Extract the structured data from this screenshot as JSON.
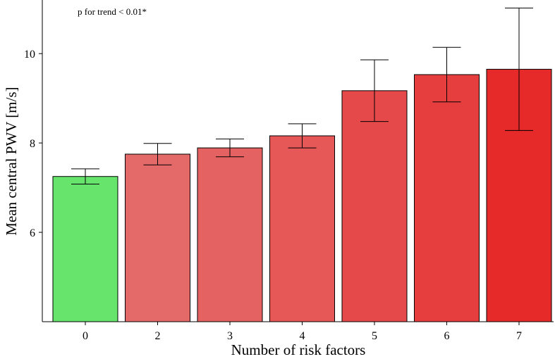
{
  "chart_data": {
    "type": "bar",
    "title": "",
    "xlabel": "Number of risk factors",
    "ylabel": "Mean central PWV [m/s]",
    "annotation": "p for trend < 0.01*",
    "categories": [
      "0",
      "2",
      "3",
      "4",
      "5",
      "6",
      "7"
    ],
    "values": [
      7.25,
      7.75,
      7.89,
      8.16,
      9.17,
      9.53,
      9.65
    ],
    "error_lower": [
      7.08,
      7.51,
      7.69,
      7.89,
      8.48,
      8.92,
      8.28
    ],
    "error_upper": [
      7.42,
      7.99,
      8.09,
      8.43,
      9.86,
      10.14,
      11.02
    ],
    "ylim": [
      4.0,
      11.2
    ],
    "yticks": [
      6,
      8,
      10
    ],
    "grid": false,
    "legend": "none",
    "colors": [
      "#66e46c",
      "#e46a6a",
      "#e56262",
      "#e65757",
      "#e64949",
      "#e63e3e",
      "#e62a2a"
    ],
    "bar_outline": "#000000"
  }
}
